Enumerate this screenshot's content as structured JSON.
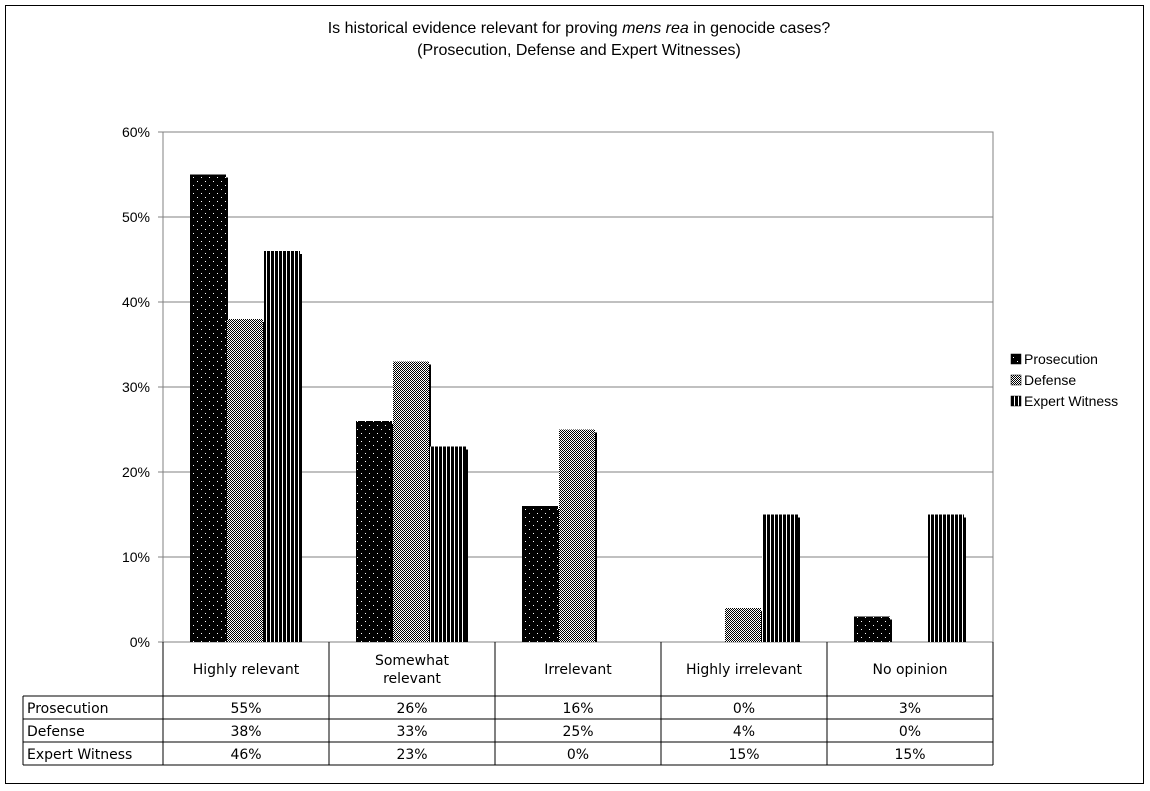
{
  "chart_data": {
    "type": "bar",
    "title": "Is historical evidence relevant for proving mens rea in genocide cases?",
    "title_parts": {
      "before": "Is historical evidence relevant for proving ",
      "italic": "mens rea",
      "after": " in genocide cases?"
    },
    "subtitle": "(Prosecution, Defense and Expert Witnesses)",
    "categories": [
      [
        "Highly relevant"
      ],
      [
        "Somewhat",
        "relevant"
      ],
      [
        "Irrelevant"
      ],
      [
        "Highly irrelevant"
      ],
      [
        "No opinion"
      ]
    ],
    "series": [
      {
        "name": "Prosecution",
        "values": [
          55,
          26,
          16,
          0,
          3
        ],
        "labels": [
          "55%",
          "26%",
          "16%",
          "0%",
          "3%"
        ],
        "pattern": "dots"
      },
      {
        "name": "Defense",
        "values": [
          38,
          33,
          25,
          4,
          0
        ],
        "labels": [
          "38%",
          "33%",
          "25%",
          "4%",
          "0%"
        ],
        "pattern": "checker"
      },
      {
        "name": "Expert Witness",
        "values": [
          46,
          23,
          0,
          15,
          15
        ],
        "labels": [
          "46%",
          "23%",
          "0%",
          "15%",
          "15%"
        ],
        "pattern": "stripes"
      }
    ],
    "y_ticks": [
      "0%",
      "10%",
      "20%",
      "30%",
      "40%",
      "50%",
      "60%"
    ],
    "ylim": [
      0,
      60
    ],
    "grid": true,
    "legend_position": "right",
    "data_table": true
  }
}
